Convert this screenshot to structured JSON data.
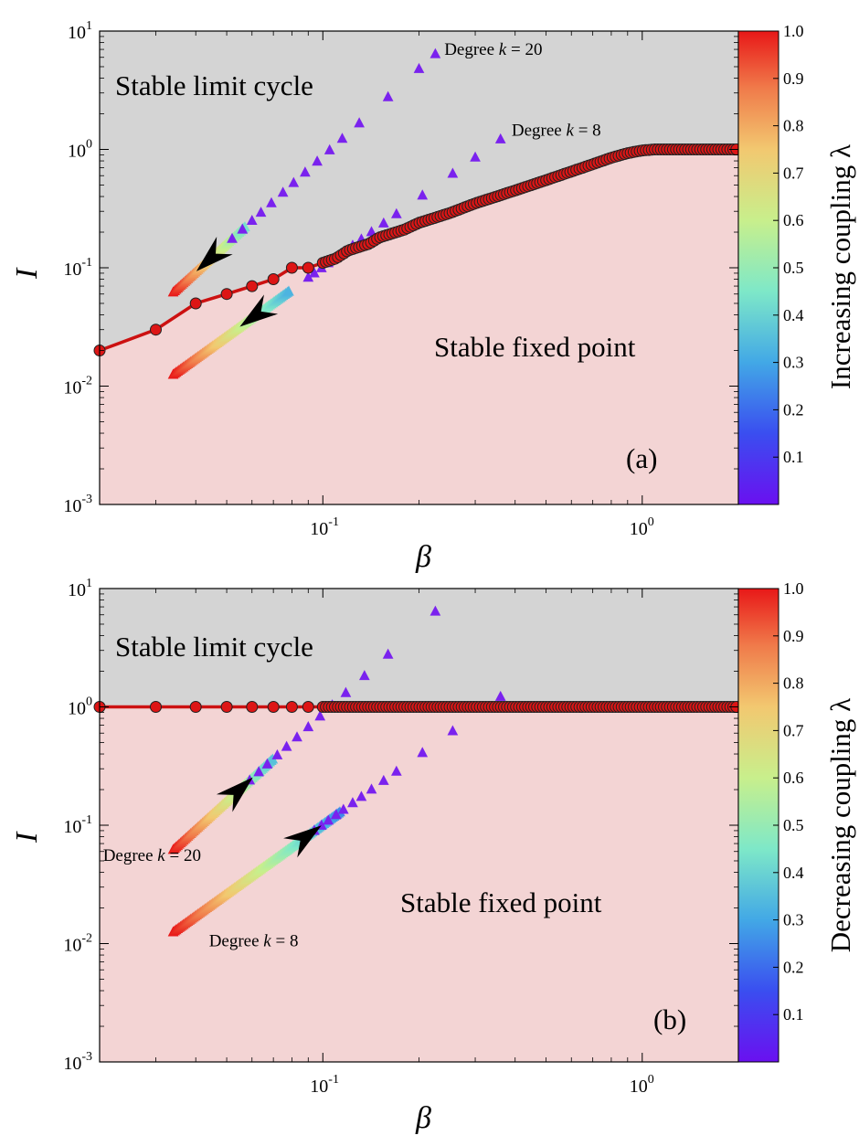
{
  "colors": {
    "limit_cycle_region": "#d4d4d4",
    "fixed_point_region": "#f3d4d4",
    "boundary": "#cc1111",
    "marker_fill": "#dd1515",
    "triangle_marker": "#7a22ee",
    "arrow": "#000000"
  },
  "chart_data": [
    {
      "id": "a",
      "type": "scatter",
      "panel_label": "(a)",
      "xlabel": "β",
      "ylabel": "I",
      "xscale": "log",
      "yscale": "log",
      "xlim": [
        0.02,
        2.0
      ],
      "ylim": [
        0.001,
        10
      ],
      "xticks": [
        {
          "v": 0.1,
          "m": "10",
          "e": "-1"
        },
        {
          "v": 1,
          "m": "10",
          "e": "0"
        }
      ],
      "yticks": [
        {
          "v": 0.001,
          "m": "10",
          "e": "-3"
        },
        {
          "v": 0.01,
          "m": "10",
          "e": "-2"
        },
        {
          "v": 0.1,
          "m": "10",
          "e": "-1"
        },
        {
          "v": 1,
          "m": "10",
          "e": "0"
        },
        {
          "v": 10,
          "m": "10",
          "e": "1"
        }
      ],
      "region_labels": {
        "upper": "Stable limit cycle",
        "lower": "Stable fixed point"
      },
      "boundary": {
        "x": [
          0.02,
          0.03,
          0.04,
          0.05,
          0.06,
          0.07,
          0.08,
          0.09,
          0.1,
          0.11,
          0.12,
          0.13,
          0.14,
          0.15,
          0.16,
          0.18,
          0.2,
          0.22,
          0.25,
          0.3,
          0.35,
          0.4,
          0.45,
          0.5,
          0.6,
          0.7,
          0.8,
          0.9,
          1.0,
          1.1,
          1.2,
          1.4,
          1.6,
          1.8,
          2.0
        ],
        "y": [
          0.02,
          0.03,
          0.05,
          0.06,
          0.07,
          0.08,
          0.1,
          0.1,
          0.11,
          0.12,
          0.14,
          0.15,
          0.16,
          0.18,
          0.19,
          0.21,
          0.24,
          0.26,
          0.29,
          0.35,
          0.4,
          0.45,
          0.5,
          0.55,
          0.65,
          0.75,
          0.85,
          0.93,
          0.98,
          1.0,
          1.0,
          1.0,
          1.0,
          1.0,
          1.0
        ]
      },
      "series": [
        {
          "name": "Degree k = 20",
          "label_parts": [
            "Degree ",
            "k",
            " = 20"
          ],
          "label_anchor": [
            0.24,
            6.3
          ],
          "x_start": 0.034,
          "x_end": 0.225,
          "y_start": 0.062,
          "y_end": 6.4,
          "sparse_x": [
            0.2,
            0.16,
            0.13,
            0.115,
            0.105,
            0.096,
            0.088,
            0.081,
            0.075,
            0.069,
            0.064,
            0.06,
            0.056,
            0.052
          ],
          "arrow": {
            "at": 0.0445,
            "direction": "decreasing-beta"
          }
        },
        {
          "name": "Degree k = 8",
          "label_parts": [
            "Degree ",
            "k",
            " = 8"
          ],
          "label_anchor": [
            0.39,
            1.3
          ],
          "x_start": 0.034,
          "x_end": 0.36,
          "y_start": 0.0125,
          "y_end": 1.22,
          "sparse_x": [
            0.3,
            0.255,
            0.205,
            0.17,
            0.155,
            0.142,
            0.132,
            0.124,
            0.116,
            0.11,
            0.104,
            0.099,
            0.094,
            0.09
          ],
          "arrow": {
            "at": 0.0615,
            "direction": "decreasing-beta"
          }
        }
      ],
      "colorbar": {
        "label": "Increasing coupling λ",
        "ticks": [
          "0.1",
          "0.2",
          "0.3",
          "0.4",
          "0.5",
          "0.6",
          "0.7",
          "0.8",
          "0.9",
          "1.0"
        ],
        "range": [
          0,
          1
        ]
      }
    },
    {
      "id": "b",
      "type": "scatter",
      "panel_label": "(b)",
      "xlabel": "β",
      "ylabel": "I",
      "xscale": "log",
      "yscale": "log",
      "xlim": [
        0.02,
        2.0
      ],
      "ylim": [
        0.001,
        10
      ],
      "xticks": [
        {
          "v": 0.1,
          "m": "10",
          "e": "-1"
        },
        {
          "v": 1,
          "m": "10",
          "e": "0"
        }
      ],
      "yticks": [
        {
          "v": 0.001,
          "m": "10",
          "e": "-3"
        },
        {
          "v": 0.01,
          "m": "10",
          "e": "-2"
        },
        {
          "v": 0.1,
          "m": "10",
          "e": "-1"
        },
        {
          "v": 1,
          "m": "10",
          "e": "0"
        },
        {
          "v": 10,
          "m": "10",
          "e": "1"
        }
      ],
      "region_labels": {
        "upper": "Stable limit cycle",
        "lower": "Stable fixed point"
      },
      "boundary": {
        "x": [
          0.02,
          0.03,
          0.04,
          0.05,
          0.06,
          0.07,
          0.08,
          0.09,
          0.1,
          0.11,
          0.12,
          0.13,
          0.14,
          0.15,
          0.16,
          0.18,
          0.2,
          0.22,
          0.25,
          0.3,
          0.35,
          0.4,
          0.45,
          0.5,
          0.6,
          0.7,
          0.8,
          0.9,
          1.0,
          1.1,
          1.2,
          1.4,
          1.6,
          1.8,
          2.0
        ],
        "y": [
          1.0,
          1.0,
          1.0,
          1.0,
          1.0,
          1.0,
          1.0,
          1.0,
          1.0,
          1.0,
          1.0,
          1.0,
          1.0,
          1.0,
          1.0,
          1.0,
          1.0,
          1.0,
          1.0,
          1.0,
          1.0,
          1.0,
          1.0,
          1.0,
          1.0,
          1.0,
          1.0,
          1.0,
          1.0,
          1.0,
          1.0,
          1.0,
          1.0,
          1.0,
          1.0
        ]
      },
      "series": [
        {
          "name": "Degree k = 20",
          "label_parts": [
            "Degree ",
            "k",
            " = 20"
          ],
          "label_anchor": [
            0.0205,
            0.05
          ],
          "x_start": 0.034,
          "x_end": 0.225,
          "y_start": 0.062,
          "y_end": 6.4,
          "sparse_x": [
            0.16,
            0.135,
            0.118,
            0.107,
            0.098,
            0.09,
            0.083,
            0.077,
            0.072,
            0.067,
            0.063,
            0.059
          ],
          "arrow": {
            "at": 0.0545,
            "direction": "increasing-beta"
          }
        },
        {
          "name": "Degree k = 8",
          "label_parts": [
            "Degree ",
            "k",
            " = 8"
          ],
          "label_anchor": [
            0.044,
            0.0095
          ],
          "x_start": 0.034,
          "x_end": 0.36,
          "y_start": 0.0125,
          "y_end": 1.22,
          "sparse_x": [
            0.255,
            0.205,
            0.17,
            0.155,
            0.142,
            0.132,
            0.124,
            0.116,
            0.11,
            0.104,
            0.099,
            0.094
          ],
          "arrow": {
            "at": 0.0885,
            "direction": "increasing-beta"
          }
        }
      ],
      "colorbar": {
        "label": "Decreasing coupling λ",
        "ticks": [
          "0.1",
          "0.2",
          "0.3",
          "0.4",
          "0.5",
          "0.6",
          "0.7",
          "0.8",
          "0.9",
          "1.0"
        ],
        "range": [
          0,
          1
        ]
      }
    }
  ]
}
